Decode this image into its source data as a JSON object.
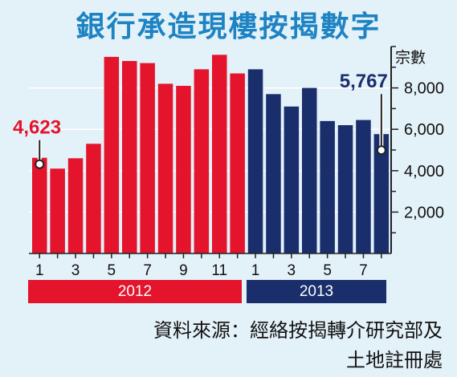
{
  "title": "銀行承造現樓按揭數字",
  "unit_label": "宗數",
  "source": {
    "line1": "資料來源：經絡按揭轉介研究部及",
    "line2": "土地註冊處"
  },
  "colors": {
    "background": "#e3f1f8",
    "title": "#1d83c3",
    "year_2012": "#e3142c",
    "year_2013": "#1a2e6c",
    "grid": "#ffffff"
  },
  "chart_data": {
    "type": "bar",
    "title": "銀行承造現樓按揭數字",
    "ylabel": "宗數",
    "xlabel": "",
    "ylim": [
      0,
      10000
    ],
    "yticks": [
      2000,
      4000,
      6000,
      8000
    ],
    "ytick_labels": [
      "2,000",
      "4,000",
      "6,000",
      "8,000"
    ],
    "grid": true,
    "groups": [
      {
        "name": "2012",
        "color": "#e3142c",
        "categories": [
          "1",
          "2",
          "3",
          "4",
          "5",
          "6",
          "7",
          "8",
          "9",
          "10",
          "11",
          "12"
        ],
        "tick_labels": [
          "1",
          "",
          "3",
          "",
          "5",
          "",
          "7",
          "",
          "9",
          "",
          "11",
          ""
        ],
        "values": [
          4623,
          4100,
          4600,
          5300,
          9500,
          9300,
          9200,
          8200,
          8100,
          8900,
          9600,
          8700
        ]
      },
      {
        "name": "2013",
        "color": "#1a2e6c",
        "categories": [
          "1",
          "2",
          "3",
          "4",
          "5",
          "6",
          "7",
          "8"
        ],
        "tick_labels": [
          "1",
          "",
          "3",
          "",
          "5",
          "",
          "7",
          ""
        ],
        "values": [
          8900,
          7700,
          7100,
          8000,
          6400,
          6200,
          6450,
          5767
        ]
      }
    ],
    "annotations": [
      {
        "text": "4,623",
        "group": 0,
        "index": 0,
        "color": "#e3142c"
      },
      {
        "text": "5,767",
        "group": 1,
        "index": 7,
        "color": "#1a2e6c"
      }
    ]
  }
}
